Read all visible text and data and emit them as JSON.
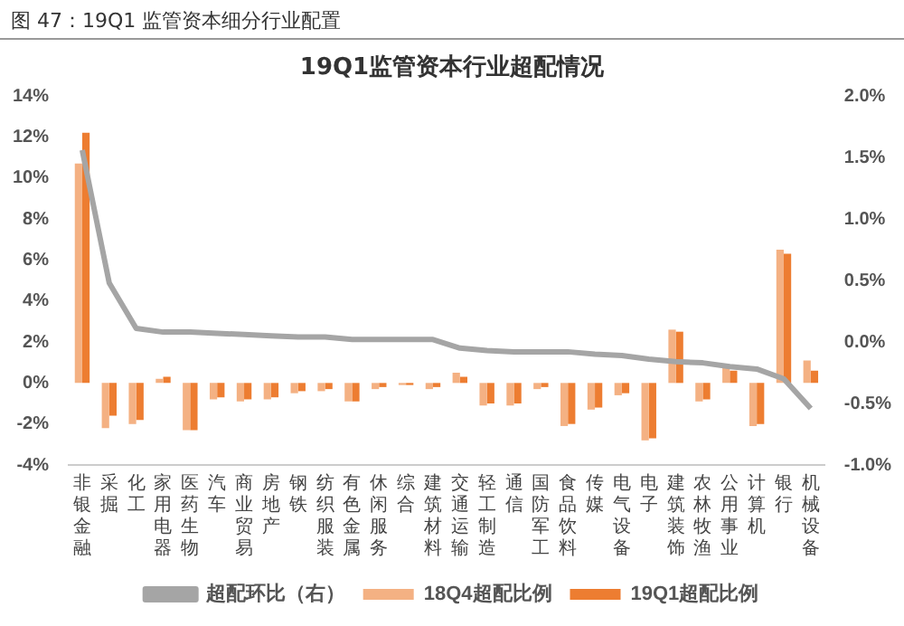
{
  "chart_data": {
    "type": "bar",
    "title": "19Q1监管资本行业超配情况",
    "annotations": [
      "图 47：19Q1 监管资本细分行业配置"
    ],
    "categories": [
      "非银金融",
      "采掘",
      "化工",
      "家用电器",
      "医药生物",
      "汽车",
      "商业贸易",
      "房地产",
      "钢铁",
      "纺织服装",
      "有色金属",
      "休闲服务",
      "综合",
      "建筑材料",
      "交通运输",
      "轻工制造",
      "通信",
      "国防军工",
      "食品饮料",
      "传媒",
      "电气设备",
      "电子",
      "建筑装饰",
      "农林牧渔",
      "公用事业",
      "计算机",
      "银行",
      "机械设备"
    ],
    "series": [
      {
        "name": "18Q4超配比例",
        "color": "#f4b183",
        "values": [
          10.7,
          -2.2,
          -2.0,
          0.2,
          -2.3,
          -0.8,
          -0.9,
          -0.8,
          -0.5,
          -0.4,
          -0.9,
          -0.3,
          -0.1,
          -0.3,
          0.5,
          -1.1,
          -1.1,
          -0.3,
          -2.1,
          -1.3,
          -0.6,
          -2.8,
          2.6,
          -0.9,
          0.8,
          -2.1,
          6.5,
          1.1
        ]
      },
      {
        "name": "19Q1超配比例",
        "color": "#ed7d31",
        "values": [
          12.2,
          -1.6,
          -1.8,
          0.3,
          -2.3,
          -0.7,
          -0.8,
          -0.7,
          -0.4,
          -0.3,
          -0.9,
          -0.2,
          -0.1,
          -0.2,
          0.3,
          -1.0,
          -1.0,
          -0.2,
          -2.0,
          -1.2,
          -0.5,
          -2.7,
          2.5,
          -0.8,
          0.6,
          -2.0,
          6.3,
          0.6
        ]
      },
      {
        "name": "超配环比（右）",
        "type": "line",
        "axis": "y2",
        "color": "#a5a5a5",
        "values": [
          1.56,
          0.48,
          0.11,
          0.08,
          0.08,
          0.07,
          0.06,
          0.05,
          0.04,
          0.04,
          0.02,
          0.02,
          0.02,
          0.02,
          -0.05,
          -0.07,
          -0.08,
          -0.08,
          -0.08,
          -0.1,
          -0.11,
          -0.14,
          -0.16,
          -0.17,
          -0.2,
          -0.22,
          -0.3,
          -0.54
        ]
      }
    ],
    "ylim": [
      -4,
      14
    ],
    "yticks": [
      {
        "value": -4,
        "label": "-4%"
      },
      {
        "value": -2,
        "label": "-2%"
      },
      {
        "value": 0,
        "label": "0%"
      },
      {
        "value": 2,
        "label": "2%"
      },
      {
        "value": 4,
        "label": "4%"
      },
      {
        "value": 6,
        "label": "6%"
      },
      {
        "value": 8,
        "label": "8%"
      },
      {
        "value": 10,
        "label": "10%"
      },
      {
        "value": 12,
        "label": "12%"
      },
      {
        "value": 14,
        "label": "14%"
      }
    ],
    "y2lim": [
      -1,
      2
    ],
    "y2ticks": [
      {
        "value": -1,
        "label": "-1.0%"
      },
      {
        "value": -0.5,
        "label": "-0.5%"
      },
      {
        "value": 0,
        "label": "0.0%"
      },
      {
        "value": 0.5,
        "label": "0.5%"
      },
      {
        "value": 1,
        "label": "1.0%"
      },
      {
        "value": 1.5,
        "label": "1.5%"
      },
      {
        "value": 2,
        "label": "2.0%"
      }
    ],
    "grid": false,
    "legend": "bottom",
    "marker": "none",
    "line_style": "solid"
  }
}
